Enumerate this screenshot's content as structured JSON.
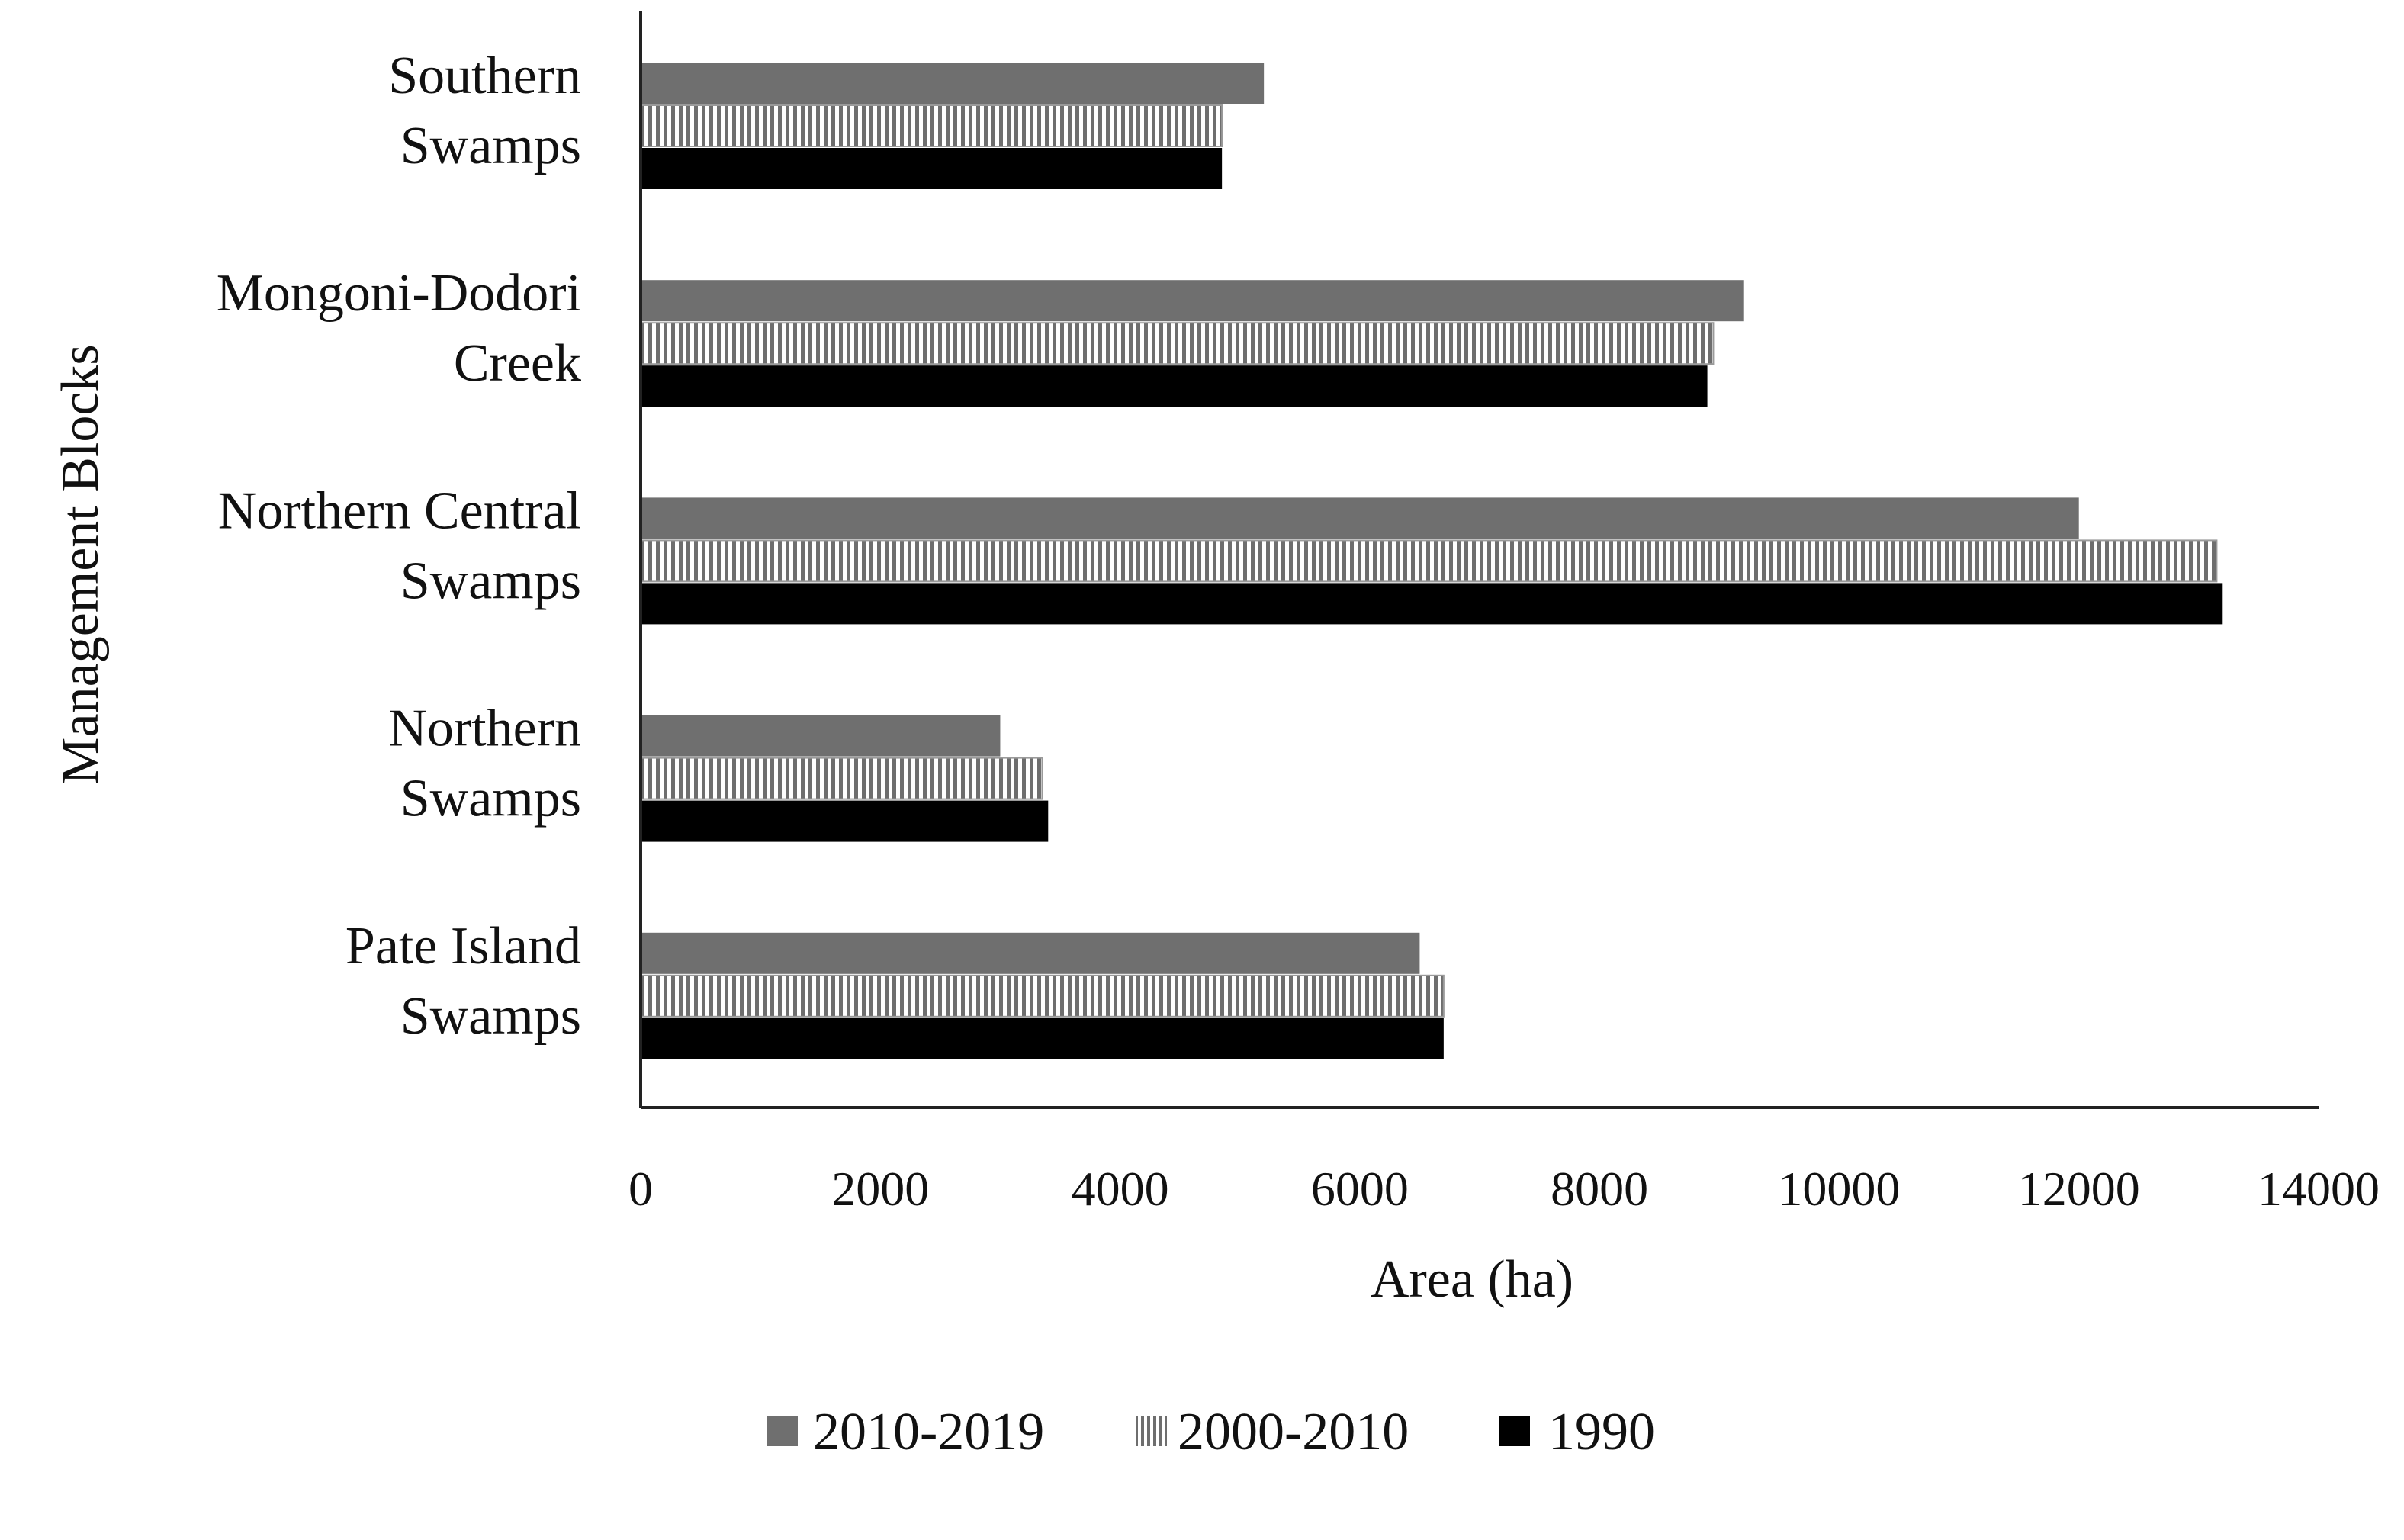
{
  "chart_data": {
    "type": "bar",
    "orientation": "horizontal",
    "categories": [
      [
        "Southern",
        "Swamps"
      ],
      [
        "Mongoni-Dodori",
        "Creek"
      ],
      [
        "Northern Central",
        "Swamps"
      ],
      [
        "Northern",
        "Swamps"
      ],
      [
        "Pate Island",
        "Swamps"
      ]
    ],
    "series": [
      {
        "name": "2010-2019",
        "values": [
          5200,
          9200,
          12000,
          3000,
          6500
        ],
        "color": "#6f6f6f",
        "pattern": "solid-gray"
      },
      {
        "name": "2000-2010",
        "values": [
          4850,
          8950,
          13150,
          3350,
          6700
        ],
        "color": "#8a8a8a",
        "pattern": "vertical-stripes"
      },
      {
        "name": "1990",
        "values": [
          4850,
          8900,
          13200,
          3400,
          6700
        ],
        "color": "#000000",
        "pattern": "solid-black"
      }
    ],
    "xlabel": "Area (ha)",
    "ylabel": "Management Blocks",
    "xlim": [
      0,
      14000
    ],
    "xticks": [
      "0",
      "2000",
      "4000",
      "6000",
      "8000",
      "10000",
      "12000",
      "14000"
    ],
    "grid": false,
    "legend_position": "bottom"
  }
}
